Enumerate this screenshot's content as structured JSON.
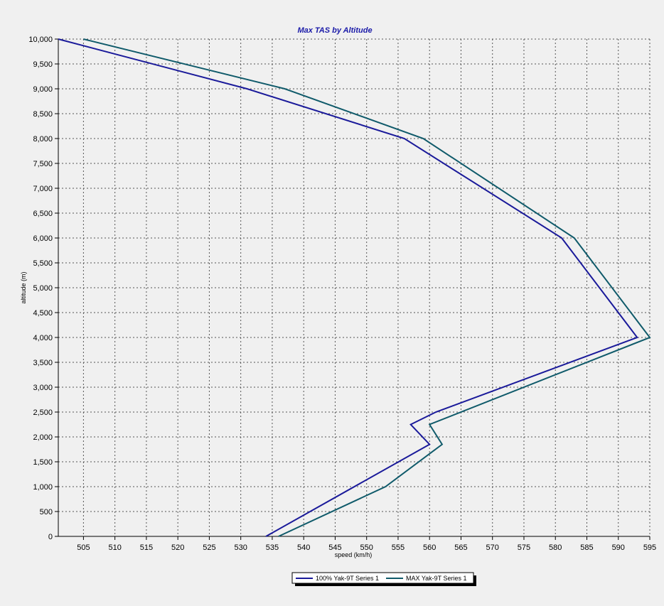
{
  "chart_data": {
    "type": "line",
    "title": "Max TAS by Altitude",
    "xlabel": "speed (km/h)",
    "ylabel": "altitude (m)",
    "xlim": [
      501,
      595
    ],
    "ylim": [
      0,
      10000
    ],
    "x_ticks": [
      505,
      510,
      515,
      520,
      525,
      530,
      535,
      540,
      545,
      550,
      555,
      560,
      565,
      570,
      575,
      580,
      585,
      590,
      595
    ],
    "y_ticks": [
      0,
      500,
      1000,
      1500,
      2000,
      2500,
      3000,
      3500,
      4000,
      4500,
      5000,
      5500,
      6000,
      6500,
      7000,
      7500,
      8000,
      8500,
      9000,
      9500,
      10000
    ],
    "y_tick_labels": [
      "0",
      "500",
      "1,000",
      "1,500",
      "2,000",
      "2,500",
      "3,000",
      "3,500",
      "4,000",
      "4,500",
      "5,000",
      "5,500",
      "6,000",
      "6,500",
      "7,000",
      "7,500",
      "8,000",
      "8,500",
      "9,000",
      "9,500",
      "10,000"
    ],
    "grid": true,
    "legend_position": "bottom-center",
    "series": [
      {
        "name": "100% Yak-9T Series 1",
        "color": "#1a1a9a",
        "x": [
          534,
          560,
          557,
          561,
          593,
          581,
          556,
          531,
          501
        ],
        "y": [
          0,
          1850,
          2250,
          2500,
          4000,
          6000,
          8000,
          9000,
          10000
        ]
      },
      {
        "name": "MAX Yak-9T Series 1",
        "color": "#0f5a6a",
        "x": [
          536,
          553,
          562,
          560,
          595,
          583,
          559,
          537,
          505
        ],
        "y": [
          0,
          1000,
          1850,
          2250,
          4000,
          6000,
          8000,
          9000,
          10000
        ]
      }
    ]
  }
}
